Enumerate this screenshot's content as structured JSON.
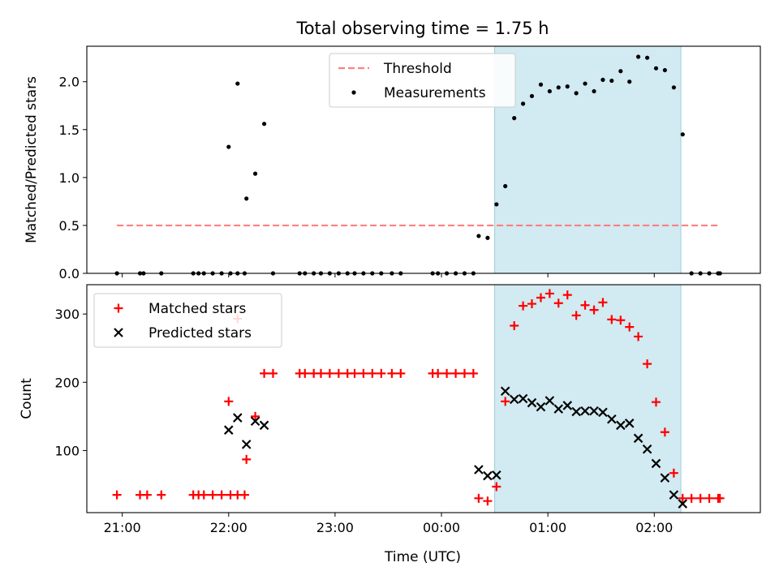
{
  "title": "Total observing time = 1.75 h",
  "xlabel": "Time (UTC)",
  "xticks": [
    {
      "t": 0.333,
      "label": "21:00"
    },
    {
      "t": 1.333,
      "label": "22:00"
    },
    {
      "t": 2.333,
      "label": "23:00"
    },
    {
      "t": 3.333,
      "label": "00:00"
    },
    {
      "t": 4.333,
      "label": "01:00"
    },
    {
      "t": 5.333,
      "label": "02:00"
    }
  ],
  "observing_window": [
    3.833,
    5.583
  ],
  "colors": {
    "window": "#add8e6",
    "threshold": "#ff7f7f",
    "matched": "#ff0000",
    "predicted": "#000000",
    "measurement": "#000000"
  },
  "chart_data": [
    {
      "type": "scatter",
      "ylabel": "Matched/Predicted stars",
      "xlim": [
        0,
        6.33
      ],
      "ylim": [
        0,
        2.37
      ],
      "yticks": [
        0.0,
        0.5,
        1.0,
        1.5,
        2.0
      ],
      "ytick_labels": [
        "0.0",
        "0.5",
        "1.0",
        "1.5",
        "2.0"
      ],
      "legend": {
        "position": "upper center",
        "entries": [
          "Threshold",
          "Measurements"
        ]
      },
      "threshold": {
        "name": "Threshold",
        "value": 0.5,
        "x": [
          0.283,
          5.95
        ]
      },
      "series": [
        {
          "name": "Measurements",
          "marker": "dot",
          "points": [
            [
              0.283,
              0
            ],
            [
              0.5,
              0
            ],
            [
              0.533,
              0
            ],
            [
              0.7,
              0
            ],
            [
              1.0,
              0
            ],
            [
              1.05,
              0
            ],
            [
              1.1,
              0
            ],
            [
              1.183,
              0
            ],
            [
              1.267,
              0
            ],
            [
              1.35,
              0
            ],
            [
              1.417,
              0
            ],
            [
              1.483,
              0
            ],
            [
              1.333,
              1.32
            ],
            [
              1.417,
              1.98
            ],
            [
              1.5,
              0.78
            ],
            [
              1.583,
              1.04
            ],
            [
              1.667,
              1.56
            ],
            [
              1.75,
              0
            ],
            [
              2.0,
              0
            ],
            [
              2.05,
              0
            ],
            [
              2.133,
              0
            ],
            [
              2.2,
              0
            ],
            [
              2.283,
              0
            ],
            [
              2.367,
              0
            ],
            [
              2.45,
              0
            ],
            [
              2.517,
              0
            ],
            [
              2.6,
              0
            ],
            [
              2.683,
              0
            ],
            [
              2.767,
              0
            ],
            [
              2.867,
              0
            ],
            [
              2.95,
              0
            ],
            [
              3.25,
              0
            ],
            [
              3.3,
              0
            ],
            [
              3.383,
              0
            ],
            [
              3.467,
              0
            ],
            [
              3.55,
              0
            ],
            [
              3.633,
              0
            ],
            [
              3.683,
              0.39
            ],
            [
              3.767,
              0.37
            ],
            [
              3.85,
              0.72
            ],
            [
              3.933,
              0.91
            ],
            [
              4.017,
              1.62
            ],
            [
              4.1,
              1.77
            ],
            [
              4.183,
              1.85
            ],
            [
              4.267,
              1.97
            ],
            [
              4.35,
              1.9
            ],
            [
              4.433,
              1.94
            ],
            [
              4.517,
              1.95
            ],
            [
              4.6,
              1.88
            ],
            [
              4.683,
              1.98
            ],
            [
              4.767,
              1.9
            ],
            [
              4.85,
              2.02
            ],
            [
              4.933,
              2.01
            ],
            [
              5.017,
              2.11
            ],
            [
              5.1,
              2.0
            ],
            [
              5.183,
              2.26
            ],
            [
              5.267,
              2.25
            ],
            [
              5.35,
              2.14
            ],
            [
              5.433,
              2.12
            ],
            [
              5.517,
              1.94
            ],
            [
              5.6,
              1.45
            ],
            [
              5.683,
              0
            ],
            [
              5.767,
              0
            ],
            [
              5.85,
              0
            ],
            [
              5.933,
              0
            ],
            [
              5.95,
              0
            ]
          ]
        }
      ]
    },
    {
      "type": "scatter",
      "ylabel": "Count",
      "xlim": [
        0,
        6.33
      ],
      "ylim": [
        9,
        343
      ],
      "yticks": [
        100,
        200,
        300
      ],
      "ytick_labels": [
        "100",
        "200",
        "300"
      ],
      "legend": {
        "position": "upper left",
        "entries": [
          "Matched stars",
          "Predicted stars"
        ]
      },
      "series": [
        {
          "name": "Matched stars",
          "marker": "plus",
          "points": [
            [
              0.283,
              35
            ],
            [
              0.5,
              35
            ],
            [
              0.567,
              35
            ],
            [
              0.7,
              35
            ],
            [
              1.0,
              35
            ],
            [
              1.05,
              35
            ],
            [
              1.1,
              35
            ],
            [
              1.183,
              35
            ],
            [
              1.267,
              35
            ],
            [
              1.35,
              35
            ],
            [
              1.417,
              35
            ],
            [
              1.483,
              35
            ],
            [
              1.333,
              172
            ],
            [
              1.417,
              293
            ],
            [
              1.5,
              87
            ],
            [
              1.583,
              150
            ],
            [
              1.667,
              213
            ],
            [
              1.75,
              213
            ],
            [
              2.0,
              213
            ],
            [
              2.05,
              213
            ],
            [
              2.133,
              213
            ],
            [
              2.2,
              213
            ],
            [
              2.283,
              213
            ],
            [
              2.367,
              213
            ],
            [
              2.45,
              213
            ],
            [
              2.517,
              213
            ],
            [
              2.6,
              213
            ],
            [
              2.683,
              213
            ],
            [
              2.767,
              213
            ],
            [
              2.867,
              213
            ],
            [
              2.95,
              213
            ],
            [
              3.25,
              213
            ],
            [
              3.3,
              213
            ],
            [
              3.383,
              213
            ],
            [
              3.467,
              213
            ],
            [
              3.55,
              213
            ],
            [
              3.633,
              213
            ],
            [
              3.683,
              30
            ],
            [
              3.767,
              26
            ],
            [
              3.85,
              47
            ],
            [
              3.933,
              172
            ],
            [
              4.017,
              283
            ],
            [
              4.1,
              312
            ],
            [
              4.183,
              315
            ],
            [
              4.267,
              324
            ],
            [
              4.35,
              330
            ],
            [
              4.433,
              316
            ],
            [
              4.517,
              328
            ],
            [
              4.6,
              298
            ],
            [
              4.683,
              313
            ],
            [
              4.767,
              306
            ],
            [
              4.85,
              317
            ],
            [
              4.933,
              292
            ],
            [
              5.017,
              291
            ],
            [
              5.1,
              281
            ],
            [
              5.183,
              267
            ],
            [
              5.267,
              227
            ],
            [
              5.35,
              171
            ],
            [
              5.433,
              127
            ],
            [
              5.517,
              67
            ],
            [
              5.6,
              30
            ],
            [
              5.683,
              30
            ],
            [
              5.767,
              30
            ],
            [
              5.85,
              30
            ],
            [
              5.933,
              30
            ],
            [
              5.95,
              30
            ]
          ]
        },
        {
          "name": "Predicted stars",
          "marker": "x",
          "points": [
            [
              1.333,
              130
            ],
            [
              1.417,
              148
            ],
            [
              1.5,
              109
            ],
            [
              1.583,
              143
            ],
            [
              1.667,
              137
            ],
            [
              3.683,
              72
            ],
            [
              3.767,
              63
            ],
            [
              3.85,
              64
            ],
            [
              3.933,
              187
            ],
            [
              4.017,
              175
            ],
            [
              4.1,
              176
            ],
            [
              4.183,
              170
            ],
            [
              4.267,
              164
            ],
            [
              4.35,
              173
            ],
            [
              4.433,
              161
            ],
            [
              4.517,
              166
            ],
            [
              4.6,
              157
            ],
            [
              4.683,
              158
            ],
            [
              4.767,
              158
            ],
            [
              4.85,
              156
            ],
            [
              4.933,
              146
            ],
            [
              5.017,
              137
            ],
            [
              5.1,
              140
            ],
            [
              5.183,
              118
            ],
            [
              5.267,
              102
            ],
            [
              5.35,
              81
            ],
            [
              5.433,
              60
            ],
            [
              5.517,
              35
            ],
            [
              5.6,
              22
            ]
          ]
        }
      ]
    }
  ]
}
